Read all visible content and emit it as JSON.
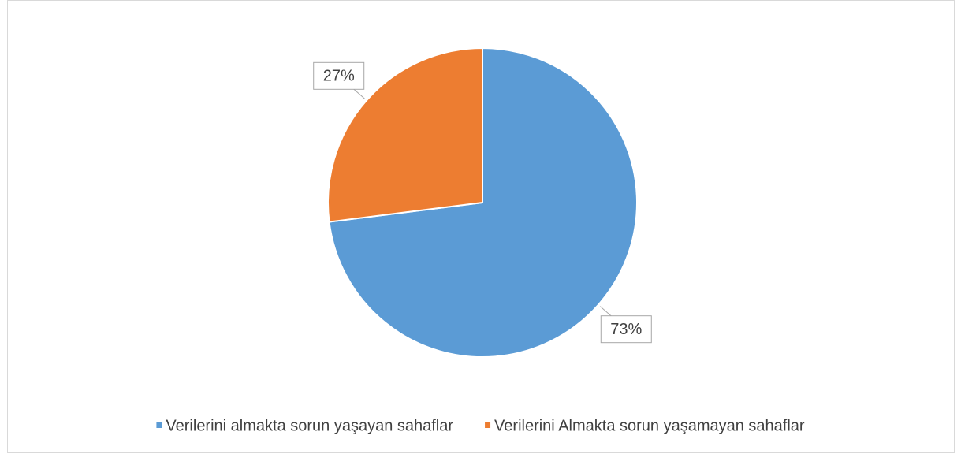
{
  "chart_data": {
    "type": "pie",
    "categories": [
      "Verilerini almakta sorun yaşayan sahaflar",
      "Verilerini Almakta sorun yaşamayan sahaflar"
    ],
    "values": [
      73,
      27
    ],
    "value_labels": [
      "73%",
      "27%"
    ],
    "colors": [
      "#5b9bd5",
      "#ed7d31"
    ],
    "legend": "bottom"
  }
}
